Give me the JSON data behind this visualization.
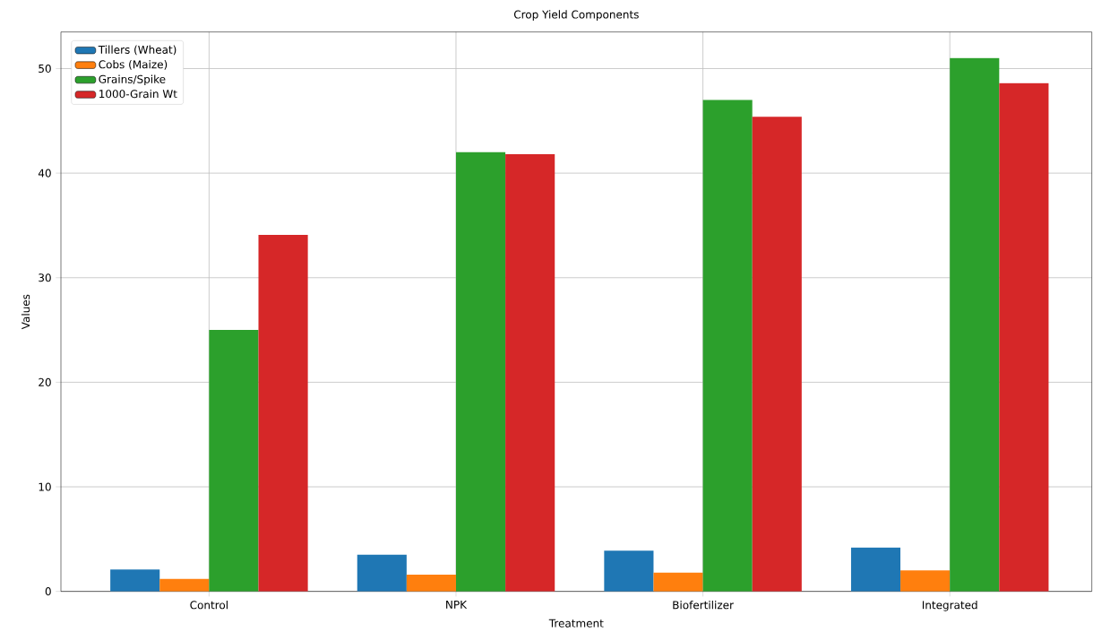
{
  "chart_data": {
    "type": "bar",
    "title": "Crop Yield Components",
    "xlabel": "Treatment",
    "ylabel": "Values",
    "categories": [
      "Control",
      "NPK",
      "Biofertilizer",
      "Integrated"
    ],
    "series": [
      {
        "name": "Tillers (Wheat)",
        "color": "#1f77b4",
        "values": [
          2.1,
          3.5,
          3.9,
          4.2
        ]
      },
      {
        "name": "Cobs (Maize)",
        "color": "#ff7f0e",
        "values": [
          1.2,
          1.6,
          1.8,
          2.0
        ]
      },
      {
        "name": "Grains/Spike",
        "color": "#2ca02c",
        "values": [
          25,
          42,
          47,
          51
        ]
      },
      {
        "name": "1000-Grain Wt",
        "color": "#d62728",
        "values": [
          34.1,
          41.8,
          45.4,
          48.6
        ]
      }
    ],
    "ylim": [
      0,
      53.5
    ],
    "yticks": [
      0,
      10,
      20,
      30,
      40,
      50
    ],
    "grid": true,
    "legend": "top left"
  }
}
